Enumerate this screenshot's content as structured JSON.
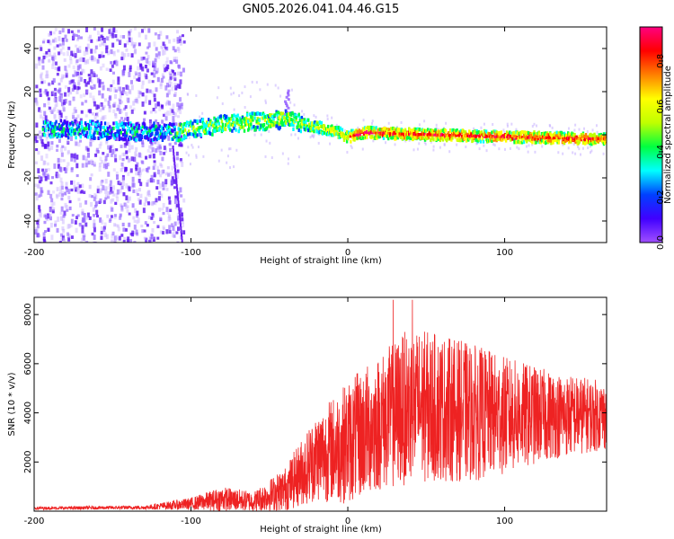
{
  "title": "GN05.2026.041.04.46.G15",
  "chart_data": [
    {
      "type": "heatmap",
      "name": "spectrogram",
      "xlabel": "Height of straight line (km)",
      "ylabel": "Frequency (Hz)",
      "xlim": [
        -200,
        165
      ],
      "ylim": [
        -50,
        50
      ],
      "xticks": [
        -200,
        -100,
        0,
        100
      ],
      "yticks": [
        -40,
        -20,
        0,
        20,
        40
      ],
      "colorbar": {
        "label": "Normalized spectral amplitude",
        "range": [
          0.0,
          0.95
        ],
        "ticks": [
          "0.0",
          "0.2",
          "0.4",
          "0.6",
          "0.8"
        ],
        "colors": [
          "#ffffff",
          "#a050ff",
          "#4000ff",
          "#0040ff",
          "#00ffff",
          "#00ff40",
          "#c0ff00",
          "#ffff00",
          "#ff8000",
          "#ff0000",
          "#ff0080"
        ]
      },
      "ridge": {
        "center_freq_hz": [
          {
            "x": -200,
            "f": 3
          },
          {
            "x": -110,
            "f": 1
          },
          {
            "x": -80,
            "f": 5
          },
          {
            "x": -40,
            "f": 7
          },
          {
            "x": -30,
            "f": 5
          },
          {
            "x": -10,
            "f": 2
          },
          {
            "x": 0,
            "f": -1
          },
          {
            "x": 10,
            "f": 1
          },
          {
            "x": 50,
            "f": 0
          },
          {
            "x": 100,
            "f": -1
          },
          {
            "x": 165,
            "f": -2
          }
        ],
        "description": "narrow frequency line near 0 Hz, strongest at heights above 0 km"
      }
    },
    {
      "type": "line",
      "name": "snr",
      "xlabel": "Height of straight line (km)",
      "ylabel": "SNR (10 * v/v)",
      "xlim": [
        -200,
        165
      ],
      "ylim": [
        0,
        8700
      ],
      "xticks": [
        -200,
        -100,
        0,
        100
      ],
      "yticks": [
        2000,
        4000,
        6000,
        8000
      ],
      "color": "#ee2222",
      "envelope": [
        {
          "x": -200,
          "mean": 120,
          "amp": 60
        },
        {
          "x": -130,
          "mean": 150,
          "amp": 80
        },
        {
          "x": -100,
          "mean": 300,
          "amp": 250
        },
        {
          "x": -80,
          "mean": 500,
          "amp": 500
        },
        {
          "x": -60,
          "mean": 400,
          "amp": 400
        },
        {
          "x": -40,
          "mean": 900,
          "amp": 900
        },
        {
          "x": -20,
          "mean": 2200,
          "amp": 1800
        },
        {
          "x": 0,
          "mean": 2800,
          "amp": 2500
        },
        {
          "x": 20,
          "mean": 3600,
          "amp": 2800
        },
        {
          "x": 40,
          "mean": 4300,
          "amp": 3200
        },
        {
          "x": 60,
          "mean": 4200,
          "amp": 3000
        },
        {
          "x": 80,
          "mean": 4000,
          "amp": 2800
        },
        {
          "x": 100,
          "mean": 3900,
          "amp": 2400
        },
        {
          "x": 130,
          "mean": 3900,
          "amp": 1800
        },
        {
          "x": 165,
          "mean": 3900,
          "amp": 1400
        }
      ],
      "peak_value": 8600
    }
  ]
}
